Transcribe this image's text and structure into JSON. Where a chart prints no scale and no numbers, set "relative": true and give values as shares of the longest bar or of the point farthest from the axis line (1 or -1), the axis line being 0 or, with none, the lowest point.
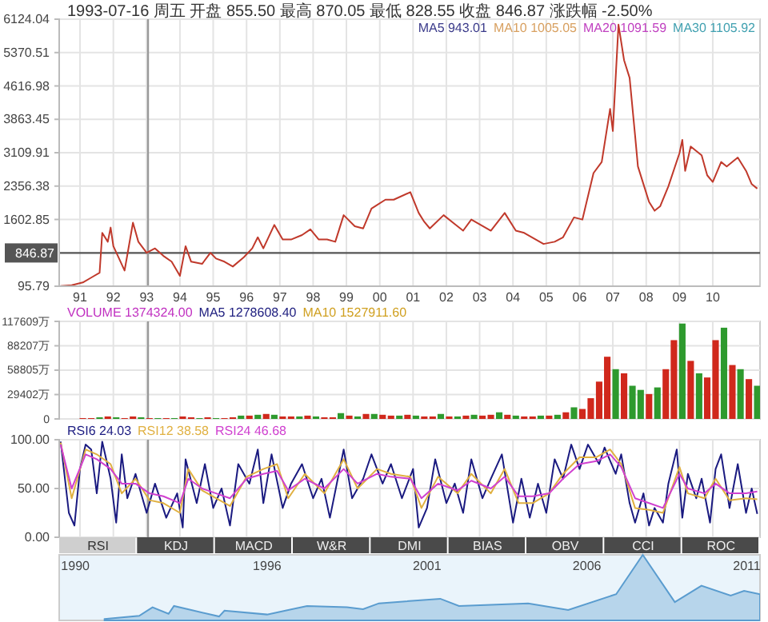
{
  "chart_data": [
    {
      "type": "line",
      "title": "1993-07-16 周五 开盘 855.50 最高 870.05 最低 828.55 收盘 846.87 涨跌幅 -2.50%",
      "annotations": [
        "MA5 943.01",
        "MA10 1005.05",
        "MA20 1091.59",
        "MA30 1105.92"
      ],
      "xlim": [
        "1990-11-15",
        "2011-12-01"
      ],
      "xticks": [
        {
          "value": "1991-07",
          "label": "91"
        },
        {
          "value": "1992-07",
          "label": "92"
        },
        {
          "value": "1993-07",
          "label": "93"
        },
        {
          "value": "1994-07",
          "label": "94"
        },
        {
          "value": "1995-07",
          "label": "95"
        },
        {
          "value": "1996-07",
          "label": "96"
        },
        {
          "value": "1997-07",
          "label": "97"
        },
        {
          "value": "1998-07",
          "label": "98"
        },
        {
          "value": "1999-07",
          "label": "99"
        },
        {
          "value": "2000-07",
          "label": "00"
        },
        {
          "value": "2001-07",
          "label": "01"
        },
        {
          "value": "2002-07",
          "label": "02"
        },
        {
          "value": "2003-07",
          "label": "03"
        },
        {
          "value": "2004-07",
          "label": "04"
        },
        {
          "value": "2005-07",
          "label": "05"
        },
        {
          "value": "2006-07",
          "label": "06"
        },
        {
          "value": "2007-07",
          "label": "07"
        },
        {
          "value": "2008-07",
          "label": "08"
        },
        {
          "value": "2009-07",
          "label": "09"
        },
        {
          "value": "2010-07",
          "label": "10"
        }
      ],
      "ylim": [
        95.79,
        6124.04
      ],
      "yticks": [
        95.79,
        1602.85,
        2356.38,
        3109.91,
        3863.45,
        4616.98,
        5370.51,
        6124.04
      ],
      "grid": true,
      "ref_lines": [
        {
          "axis": "y",
          "value": 846.87,
          "label": "846.87",
          "color": "#555555"
        },
        {
          "axis": "x",
          "value": "1993-07-16",
          "color": "#999999"
        }
      ],
      "series": [
        {
          "color": "#c0392b",
          "x": [
            "1990-12",
            "1991-04",
            "1991-08",
            "1991-11",
            "1992-02",
            "1992-03",
            "1992-05",
            "1992-06",
            "1992-07",
            "1992-11",
            "1992-12",
            "1993-02",
            "1993-04",
            "1993-07",
            "1993-10",
            "1994-01",
            "1994-04",
            "1994-07",
            "1994-09",
            "1994-11",
            "1995-03",
            "1995-06",
            "1995-08",
            "1995-11",
            "1996-02",
            "1996-06",
            "1996-09",
            "1996-11",
            "1997-01",
            "1997-05",
            "1997-08",
            "1997-11",
            "1998-03",
            "1998-06",
            "1998-09",
            "1998-12",
            "1999-03",
            "1999-06",
            "1999-10",
            "2000-01",
            "2000-04",
            "2000-09",
            "2000-12",
            "2001-06",
            "2001-09",
            "2001-11",
            "2002-01",
            "2002-06",
            "2002-10",
            "2003-01",
            "2003-04",
            "2003-11",
            "2004-04",
            "2004-08",
            "2004-11",
            "2005-06",
            "2005-10",
            "2006-01",
            "2006-05",
            "2006-08",
            "2006-12",
            "2007-03",
            "2007-06",
            "2007-07",
            "2007-09",
            "2007-11",
            "2008-01",
            "2008-03",
            "2008-04",
            "2008-06",
            "2008-08",
            "2008-10",
            "2008-12",
            "2009-03",
            "2009-07",
            "2009-08",
            "2009-09",
            "2009-11",
            "2010-03",
            "2010-05",
            "2010-07",
            "2010-10",
            "2010-12",
            "2011-04",
            "2011-07",
            "2011-09",
            "2011-11"
          ],
          "values": [
            100,
            120,
            180,
            290,
            400,
            1300,
            1100,
            1420,
            1000,
            450,
            800,
            1530,
            1100,
            850,
            950,
            780,
            650,
            330,
            1000,
            650,
            600,
            850,
            720,
            650,
            540,
            750,
            950,
            1200,
            950,
            1480,
            1150,
            1150,
            1250,
            1380,
            1150,
            1150,
            1100,
            1700,
            1450,
            1400,
            1850,
            2050,
            2050,
            2220,
            1750,
            1550,
            1400,
            1700,
            1500,
            1350,
            1600,
            1350,
            1750,
            1350,
            1300,
            1050,
            1100,
            1200,
            1650,
            1600,
            2650,
            2900,
            4100,
            3600,
            6000,
            5200,
            4800,
            3500,
            2800,
            2400,
            2000,
            1800,
            1900,
            2350,
            3100,
            3400,
            2700,
            3250,
            3050,
            2600,
            2450,
            2900,
            2800,
            3000,
            2700,
            2400,
            2300
          ]
        }
      ]
    },
    {
      "type": "bar",
      "annotations": [
        "VOLUME 1374324.00",
        "MA5 1278608.40",
        "MA10 1527911.60"
      ],
      "xlim": [
        "1990-11-15",
        "2011-12-01"
      ],
      "xticks": [
        "1991-07",
        "1992-07",
        "1993-07",
        "1994-07",
        "1995-07",
        "1996-07",
        "1997-07",
        "1998-07",
        "1999-07",
        "2000-07",
        "2001-07",
        "2002-07",
        "2003-07",
        "2004-07",
        "2005-07",
        "2006-07",
        "2007-07",
        "2008-07",
        "2009-07",
        "2010-07"
      ],
      "ylim": [
        0,
        117609
      ],
      "yticks": [
        0,
        {
          "value": 29402,
          "label": "29402万"
        },
        {
          "value": 58805,
          "label": "58805万"
        },
        {
          "value": 88207,
          "label": "88207万"
        },
        {
          "value": 117609,
          "label": "117609万"
        }
      ],
      "tick_labels": "y",
      "grid": true,
      "ref_lines": [
        {
          "axis": "x",
          "value": "1993-07-16",
          "color": "#999999"
        }
      ],
      "x": [
        "1991-02",
        "1991-05",
        "1991-08",
        "1991-11",
        "1992-02",
        "1992-05",
        "1992-08",
        "1992-11",
        "1993-02",
        "1993-05",
        "1993-08",
        "1993-11",
        "1994-02",
        "1994-05",
        "1994-08",
        "1994-11",
        "1995-02",
        "1995-05",
        "1995-08",
        "1995-11",
        "1996-02",
        "1996-05",
        "1996-08",
        "1996-11",
        "1997-02",
        "1997-05",
        "1997-08",
        "1997-11",
        "1998-02",
        "1998-05",
        "1998-08",
        "1998-11",
        "1999-02",
        "1999-05",
        "1999-08",
        "1999-11",
        "2000-02",
        "2000-05",
        "2000-08",
        "2000-11",
        "2001-02",
        "2001-05",
        "2001-08",
        "2001-11",
        "2002-02",
        "2002-05",
        "2002-08",
        "2002-11",
        "2003-02",
        "2003-05",
        "2003-08",
        "2003-11",
        "2004-02",
        "2004-05",
        "2004-08",
        "2004-11",
        "2005-02",
        "2005-05",
        "2005-08",
        "2005-11",
        "2006-02",
        "2006-05",
        "2006-08",
        "2006-11",
        "2007-02",
        "2007-05",
        "2007-08",
        "2007-11",
        "2008-02",
        "2008-05",
        "2008-08",
        "2008-11",
        "2009-02",
        "2009-05",
        "2009-08",
        "2009-11",
        "2010-02",
        "2010-05",
        "2010-08",
        "2010-11",
        "2011-02",
        "2011-05",
        "2011-08",
        "2011-11"
      ],
      "values": [
        0,
        0,
        1000,
        1000,
        2000,
        3000,
        2000,
        1000,
        3000,
        2000,
        1000,
        1000,
        1000,
        1000,
        3000,
        2000,
        1000,
        2000,
        1000,
        1000,
        2000,
        4000,
        4000,
        5000,
        6000,
        5000,
        3000,
        3000,
        3000,
        4000,
        3000,
        2000,
        2000,
        7000,
        4000,
        3000,
        6000,
        6000,
        5000,
        4000,
        4000,
        5000,
        4000,
        3000,
        3000,
        6000,
        3000,
        3000,
        4000,
        5000,
        4000,
        5000,
        8000,
        5000,
        4000,
        3000,
        3000,
        4000,
        4000,
        5000,
        8000,
        14000,
        12000,
        25000,
        45000,
        75000,
        60000,
        55000,
        40000,
        35000,
        30000,
        38000,
        60000,
        95000,
        115000,
        70000,
        55000,
        50000,
        95000,
        110000,
        65000,
        60000,
        48000,
        40000
      ],
      "colors": [
        "#d0281c",
        "#2e9a2e",
        "#d0281c",
        "#d0281c",
        "#2e9a2e",
        "#d0281c",
        "#2e9a2e",
        "#d0281c",
        "#d0281c",
        "#2e9a2e",
        "#d0281c",
        "#2e9a2e",
        "#d0281c",
        "#2e9a2e",
        "#d0281c",
        "#d0281c",
        "#2e9a2e",
        "#d0281c",
        "#2e9a2e",
        "#d0281c",
        "#d0281c",
        "#2e9a2e",
        "#d0281c",
        "#2e9a2e",
        "#d0281c",
        "#2e9a2e",
        "#d0281c",
        "#d0281c",
        "#2e9a2e",
        "#d0281c",
        "#2e9a2e",
        "#d0281c",
        "#d0281c",
        "#2e9a2e",
        "#d0281c",
        "#2e9a2e",
        "#d0281c",
        "#2e9a2e",
        "#d0281c",
        "#d0281c",
        "#2e9a2e",
        "#d0281c",
        "#2e9a2e",
        "#d0281c",
        "#d0281c",
        "#2e9a2e",
        "#d0281c",
        "#2e9a2e",
        "#d0281c",
        "#2e9a2e",
        "#d0281c",
        "#d0281c",
        "#2e9a2e",
        "#d0281c",
        "#2e9a2e",
        "#d0281c",
        "#d0281c",
        "#2e9a2e",
        "#d0281c",
        "#2e9a2e",
        "#d0281c",
        "#2e9a2e",
        "#d0281c",
        "#d0281c",
        "#d0281c",
        "#d0281c",
        "#2e9a2e",
        "#d0281c",
        "#2e9a2e",
        "#2e9a2e",
        "#d0281c",
        "#2e9a2e",
        "#d0281c",
        "#d0281c",
        "#2e9a2e",
        "#d0281c",
        "#2e9a2e",
        "#d0281c",
        "#d0281c",
        "#2e9a2e",
        "#d0281c",
        "#2e9a2e",
        "#d0281c",
        "#2e9a2e"
      ]
    },
    {
      "type": "line",
      "legend": "top left",
      "annotations": [
        "RSI",
        "KDJ",
        "MACD",
        "W&R",
        "DMI",
        "BIAS",
        "OBV",
        "CCI",
        "ROC"
      ],
      "xlim": [
        "1990-11-15",
        "2011-12-01"
      ],
      "xticks": [
        "1991-07",
        "1992-07",
        "1993-07",
        "1994-07",
        "1995-07",
        "1996-07",
        "1997-07",
        "1998-07",
        "1999-07",
        "2000-07",
        "2001-07",
        "2002-07",
        "2003-07",
        "2004-07",
        "2005-07",
        "2006-07",
        "2007-07",
        "2008-07",
        "2009-07",
        "2010-07"
      ],
      "ylim": [
        0,
        100
      ],
      "yticks": [
        {
          "value": 0,
          "label": "0.00"
        },
        {
          "value": 50,
          "label": "50.00"
        },
        {
          "value": 100,
          "label": "100.00"
        }
      ],
      "tick_labels": "y",
      "grid": true,
      "ref_lines": [
        {
          "axis": "x",
          "value": "1993-07-16",
          "color": "#999999"
        }
      ],
      "series": [
        {
          "name": "RSI6 24.03",
          "color": "#1a1a80",
          "x": [
            "1990-12",
            "1991-03",
            "1991-05",
            "1991-07",
            "1991-09",
            "1991-11",
            "1992-01",
            "1992-03",
            "1992-06",
            "1992-08",
            "1992-10",
            "1992-12",
            "1993-03",
            "1993-07",
            "1993-10",
            "1994-02",
            "1994-06",
            "1994-08",
            "1994-09",
            "1995-01",
            "1995-04",
            "1995-07",
            "1995-10",
            "1996-01",
            "1996-04",
            "1996-08",
            "1996-11",
            "1997-01",
            "1997-04",
            "1997-08",
            "1997-11",
            "1998-03",
            "1998-07",
            "1998-10",
            "1999-01",
            "1999-06",
            "1999-09",
            "2000-01",
            "2000-04",
            "2000-08",
            "2000-11",
            "2001-03",
            "2001-07",
            "2001-09",
            "2001-12",
            "2002-03",
            "2002-07",
            "2002-10",
            "2003-01",
            "2003-04",
            "2003-08",
            "2003-11",
            "2004-03",
            "2004-07",
            "2004-10",
            "2005-01",
            "2005-04",
            "2005-07",
            "2005-10",
            "2006-01",
            "2006-04",
            "2006-07",
            "2006-10",
            "2007-02",
            "2007-04",
            "2007-08",
            "2007-10",
            "2008-01",
            "2008-03",
            "2008-06",
            "2008-08",
            "2008-10",
            "2009-01",
            "2009-03",
            "2009-06",
            "2009-08",
            "2009-10",
            "2010-01",
            "2010-03",
            "2010-06",
            "2010-08",
            "2010-10",
            "2011-01",
            "2011-04",
            "2011-07",
            "2011-09",
            "2011-11"
          ],
          "values": [
            98,
            25,
            12,
            70,
            95,
            90,
            45,
            98,
            60,
            15,
            85,
            40,
            65,
            25,
            55,
            20,
            45,
            10,
            80,
            35,
            75,
            30,
            50,
            12,
            75,
            55,
            90,
            35,
            85,
            30,
            55,
            75,
            40,
            60,
            20,
            90,
            40,
            60,
            85,
            55,
            75,
            40,
            70,
            10,
            30,
            80,
            35,
            55,
            25,
            80,
            40,
            60,
            85,
            15,
            60,
            20,
            55,
            25,
            80,
            60,
            95,
            70,
            95,
            75,
            92,
            65,
            85,
            35,
            15,
            45,
            12,
            30,
            15,
            55,
            90,
            20,
            65,
            40,
            60,
            15,
            70,
            85,
            30,
            75,
            25,
            50,
            24
          ]
        },
        {
          "name": "RSI12 38.58",
          "color": "#e0b040",
          "x": [
            "1990-12",
            "1991-04",
            "1991-09",
            "1992-01",
            "1992-06",
            "1992-10",
            "1993-03",
            "1993-08",
            "1994-01",
            "1994-07",
            "1994-10",
            "1995-03",
            "1995-08",
            "1996-01",
            "1996-07",
            "1997-01",
            "1997-06",
            "1997-10",
            "1998-04",
            "1998-11",
            "1999-06",
            "1999-11",
            "2000-06",
            "2000-11",
            "2001-06",
            "2001-10",
            "2002-04",
            "2002-11",
            "2003-04",
            "2003-11",
            "2004-04",
            "2004-09",
            "2005-02",
            "2005-08",
            "2006-01",
            "2006-07",
            "2007-01",
            "2007-06",
            "2007-10",
            "2008-03",
            "2008-08",
            "2009-01",
            "2009-07",
            "2009-10",
            "2010-04",
            "2010-08",
            "2011-01",
            "2011-07",
            "2011-11"
          ],
          "values": [
            97,
            40,
            90,
            85,
            75,
            45,
            60,
            38,
            35,
            25,
            70,
            48,
            40,
            32,
            62,
            70,
            75,
            40,
            65,
            45,
            80,
            50,
            70,
            65,
            62,
            30,
            62,
            45,
            65,
            45,
            70,
            35,
            35,
            45,
            65,
            82,
            82,
            90,
            75,
            30,
            28,
            25,
            72,
            45,
            40,
            60,
            38,
            40,
            39
          ]
        },
        {
          "name": "RSI24 46.68",
          "color": "#d040d0",
          "x": [
            "1990-12",
            "1991-04",
            "1991-09",
            "1992-01",
            "1992-06",
            "1992-10",
            "1993-03",
            "1993-08",
            "1994-01",
            "1994-07",
            "1994-10",
            "1995-03",
            "1995-08",
            "1996-01",
            "1996-07",
            "1997-01",
            "1997-06",
            "1997-10",
            "1998-04",
            "1998-11",
            "1999-06",
            "1999-11",
            "2000-06",
            "2000-11",
            "2001-06",
            "2001-10",
            "2002-04",
            "2002-11",
            "2003-04",
            "2003-11",
            "2004-04",
            "2004-09",
            "2005-02",
            "2005-08",
            "2006-01",
            "2006-07",
            "2007-01",
            "2007-06",
            "2007-10",
            "2008-03",
            "2008-08",
            "2009-01",
            "2009-07",
            "2009-10",
            "2010-04",
            "2010-08",
            "2011-01",
            "2011-07",
            "2011-11"
          ],
          "values": [
            95,
            50,
            85,
            80,
            70,
            55,
            55,
            45,
            42,
            35,
            60,
            50,
            45,
            40,
            60,
            65,
            68,
            48,
            60,
            50,
            70,
            55,
            65,
            62,
            60,
            40,
            55,
            48,
            58,
            50,
            62,
            42,
            42,
            45,
            60,
            75,
            78,
            85,
            72,
            40,
            35,
            30,
            65,
            50,
            45,
            55,
            45,
            45,
            47
          ]
        }
      ]
    },
    {
      "type": "area",
      "relative": true,
      "tick_labels": "x",
      "xlim": [
        "1989-07-01",
        "2011-06-01"
      ],
      "xticks": [
        "1990",
        "1996",
        "2001",
        "2006",
        "2011"
      ],
      "series": [
        {
          "color": "#5a9ccf",
          "x": [
            "1990-12",
            "1992-01",
            "1992-06",
            "1992-12",
            "1993-02",
            "1994-07",
            "1994-09",
            "1996-01",
            "1997-04",
            "1998-07",
            "1999-01",
            "1999-07",
            "2001-06",
            "2002-01",
            "2004-03",
            "2005-06",
            "2006-12",
            "2007-10",
            "2008-10",
            "2009-08",
            "2010-07",
            "2010-12",
            "2011-06"
          ],
          "values": [
            0.02,
            0.07,
            0.2,
            0.1,
            0.22,
            0.06,
            0.15,
            0.09,
            0.22,
            0.2,
            0.17,
            0.26,
            0.33,
            0.22,
            0.26,
            0.16,
            0.4,
            1,
            0.28,
            0.53,
            0.38,
            0.45,
            0.4
          ]
        }
      ]
    }
  ]
}
